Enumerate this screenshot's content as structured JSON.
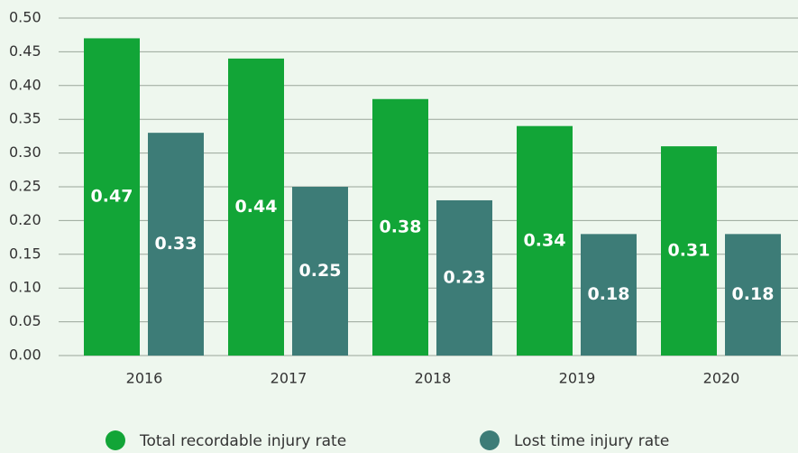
{
  "chart_data": {
    "type": "bar",
    "categories": [
      "2016",
      "2017",
      "2018",
      "2019",
      "2020"
    ],
    "series": [
      {
        "name": "Total recordable injury rate",
        "color": "#12a537",
        "values": [
          0.47,
          0.44,
          0.38,
          0.34,
          0.31
        ]
      },
      {
        "name": "Lost time injury rate",
        "color": "#3d7c77",
        "values": [
          0.33,
          0.25,
          0.23,
          0.18,
          0.18
        ]
      }
    ],
    "ylim": [
      0,
      0.5
    ],
    "yticks": [
      {
        "value": 0,
        "label": "0.00"
      },
      {
        "value": 0.05,
        "label": "0.05"
      },
      {
        "value": 0.1,
        "label": "0.10"
      },
      {
        "value": 0.15,
        "label": "0.15"
      },
      {
        "value": 0.2,
        "label": "0.20"
      },
      {
        "value": 0.25,
        "label": "0.25"
      },
      {
        "value": 0.3,
        "label": "0.30"
      },
      {
        "value": 0.35,
        "label": "0.35"
      },
      {
        "value": 0.4,
        "label": "0.40"
      },
      {
        "value": 0.45,
        "label": "0.45"
      },
      {
        "value": 0.5,
        "label": "0.50"
      }
    ],
    "grid": true
  }
}
